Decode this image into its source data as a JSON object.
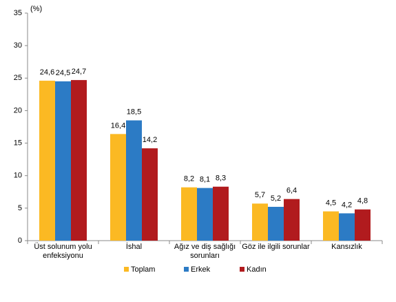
{
  "chart_data": {
    "type": "bar",
    "y_label": "(%)",
    "categories": [
      "Üst solunum yolu enfeksiyonu",
      "İshal",
      "Ağız ve diş sağlığı sorunları",
      "Göz ile ilgili sorunlar",
      "Kansızlık"
    ],
    "series": [
      {
        "name": "Toplam",
        "color": "#fbb923",
        "values": [
          24.6,
          16.4,
          8.2,
          5.7,
          4.5
        ],
        "value_labels": [
          "24,6",
          "16,4",
          "8,2",
          "5,7",
          "4,5"
        ]
      },
      {
        "name": "Erkek",
        "color": "#2c7bc5",
        "values": [
          24.5,
          18.5,
          8.1,
          5.2,
          4.2
        ],
        "value_labels": [
          "24,5",
          "18,5",
          "8,1",
          "5,2",
          "4,2"
        ]
      },
      {
        "name": "Kadın",
        "color": "#b11b1e",
        "values": [
          24.7,
          14.2,
          8.3,
          6.4,
          4.8
        ],
        "value_labels": [
          "24,7",
          "14,2",
          "8,3",
          "6,4",
          "4,8"
        ]
      }
    ],
    "ylim": [
      0,
      35
    ],
    "yticks": [
      0,
      5,
      10,
      15,
      20,
      25,
      30,
      35
    ],
    "grid": false,
    "legend": "bottom"
  }
}
